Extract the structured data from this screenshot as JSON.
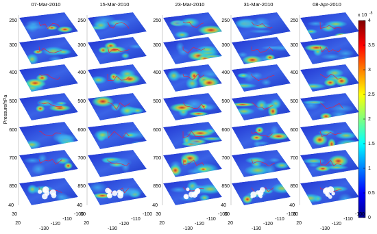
{
  "panels": [
    {
      "title": "07-Mar-2010"
    },
    {
      "title": "15-Mar-2010"
    },
    {
      "title": "23-Mar-2010"
    },
    {
      "title": "31-Mar-2010"
    },
    {
      "title": "08-Apr-2010"
    }
  ],
  "pressure_label": "Pressure/hPa",
  "pressure_ticks": [
    250,
    300,
    400,
    500,
    600,
    700,
    850
  ],
  "lat_ticks": [
    40,
    30,
    20
  ],
  "lon_ticks": [
    -130,
    -120,
    -110,
    -100
  ],
  "colorbar": {
    "ticks": [
      0,
      0.5,
      1,
      1.5,
      2,
      2.5,
      3,
      3.5,
      4
    ],
    "exponent_base": "x 10",
    "exponent": "-5"
  }
}
